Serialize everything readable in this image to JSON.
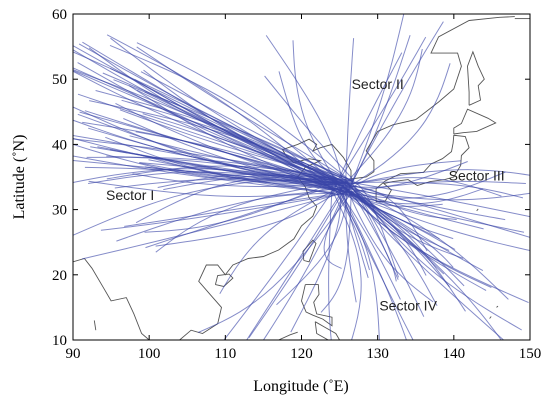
{
  "map": {
    "x_axis": {
      "title": "Longitude (˚E)",
      "min": 90,
      "max": 150,
      "ticks": [
        "90",
        "100",
        "110",
        "120",
        "130",
        "140",
        "150"
      ]
    },
    "y_axis": {
      "title": "Latitude (˚N)",
      "min": 10,
      "max": 60,
      "ticks": [
        "10",
        "20",
        "30",
        "40",
        "50",
        "60"
      ]
    },
    "sectors": [
      {
        "label": "Sector I",
        "lon": 97.5,
        "lat": 31.5
      },
      {
        "label": "Sector II",
        "lon": 130,
        "lat": 48.5
      },
      {
        "label": "Sector III",
        "lon": 143,
        "lat": 34.5
      },
      {
        "label": "Sector IV",
        "lon": 134,
        "lat": 14.5
      }
    ],
    "colors": {
      "track": "#3a45a8",
      "coastline": "#555555",
      "axes": "#000000"
    },
    "convergence_center": {
      "lon": 125.5,
      "lat": 33.5
    },
    "track_count": 150
  }
}
